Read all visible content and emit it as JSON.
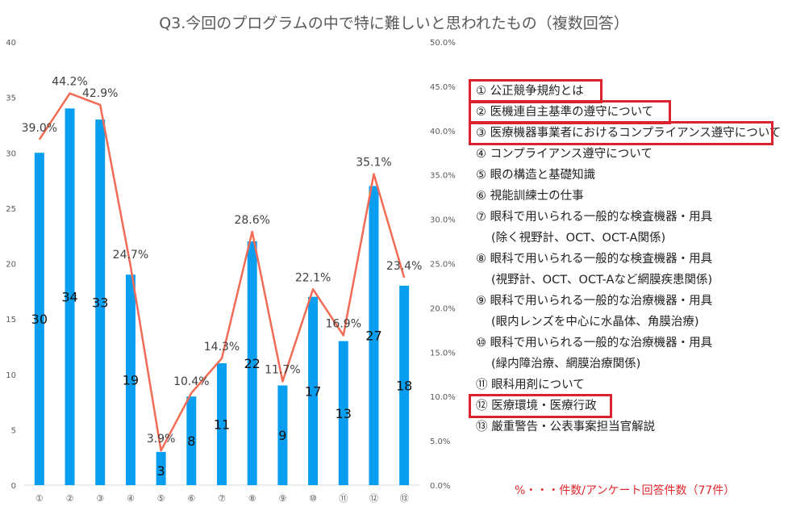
{
  "chart_data": {
    "type": "bar",
    "title": "Q3.今回のプログラムの中で特に難しいと思われたもの（複数回答）",
    "categories": [
      "①",
      "②",
      "③",
      "④",
      "⑤",
      "⑥",
      "⑦",
      "⑧",
      "⑨",
      "⑩",
      "⑪",
      "⑫",
      "⑬"
    ],
    "series": [
      {
        "type": "bar",
        "values": [
          30,
          34,
          33,
          19,
          3,
          8,
          11,
          22,
          9,
          17,
          13,
          27,
          18
        ],
        "color": "#0a9ef0"
      },
      {
        "type": "line",
        "values": [
          39.0,
          44.2,
          42.9,
          24.7,
          3.9,
          10.4,
          14.3,
          28.6,
          11.7,
          22.1,
          16.9,
          35.1,
          23.4
        ],
        "color": "#f26b55"
      }
    ],
    "bar_labels": [
      "30",
      "34",
      "33",
      "19",
      "3",
      "8",
      "11",
      "22",
      "9",
      "17",
      "13",
      "27",
      "18"
    ],
    "line_labels": [
      "39.0%",
      "44.2%",
      "42.9%",
      "24.7%",
      "3.9%",
      "10.4%",
      "14.3%",
      "28.6%",
      "11.7%",
      "22.1%",
      "16.9%",
      "35.1%",
      "23.4%"
    ],
    "ylim": [
      0,
      40
    ],
    "y_ticks": [
      "0",
      "5",
      "10",
      "15",
      "20",
      "25",
      "30",
      "35",
      "40"
    ],
    "y2lim": [
      0,
      50
    ],
    "y2_ticks": [
      "0.0%",
      "5.0%",
      "10.0%",
      "15.0%",
      "20.0%",
      "25.0%",
      "30.0%",
      "35.0%",
      "40.0%",
      "45.0%",
      "50.0%"
    ],
    "grid": false
  },
  "legend": [
    {
      "text": "① 公正競争規約とは",
      "highlight": true
    },
    {
      "text": "② 医機連自主基準の遵守について",
      "highlight": true
    },
    {
      "text": "③ 医療機器事業者におけるコンプライアンス遵守について",
      "highlight": true
    },
    {
      "text": "④ コンプライアンス遵守について"
    },
    {
      "text": "⑤ 眼の構造と基礎知識"
    },
    {
      "text": "⑥ 視能訓練士の仕事"
    },
    {
      "text": "⑦ 眼科で用いられる一般的な検査機器・用具"
    },
    {
      "text": "(除く視野計、OCT、OCT-A関係)"
    },
    {
      "text": "⑧ 眼科で用いられる一般的な検査機器・用具"
    },
    {
      "text": "(視野計、OCT、OCT-Aなど網膜疾患関係)"
    },
    {
      "text": "⑨ 眼科で用いられる一般的な治療機器・用具"
    },
    {
      "text": "(眼内レンズを中心に水晶体、角膜治療)"
    },
    {
      "text": "⑩ 眼科で用いられる一般的な治療機器・用具"
    },
    {
      "text": "(緑内障治療、網膜治療関係)"
    },
    {
      "text": "⑪ 眼科用剤について"
    },
    {
      "text": "⑫ 医療環境・医療行政",
      "highlight": true
    },
    {
      "text": "⑬ 厳重警告・公表事案担当官解説"
    }
  ],
  "note": "%・・・件数/アンケート回答件数（77件）"
}
